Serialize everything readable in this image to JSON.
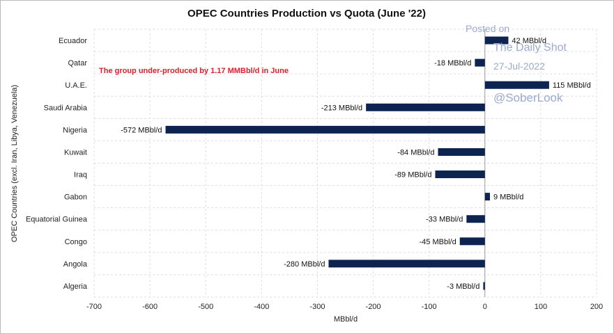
{
  "chart_data": {
    "type": "bar",
    "orientation": "horizontal",
    "title": "OPEC Countries Production vs Quota (June '22)",
    "xlabel": "MBbl/d",
    "ylabel": "OPEC Countries (excl. Iran, Libya, Venezuela)",
    "xlim": [
      -700,
      200
    ],
    "xticks": [
      -700,
      -600,
      -500,
      -400,
      -300,
      -200,
      -100,
      0,
      100,
      200
    ],
    "grid": true,
    "bar_color": "#0d2451",
    "annotation_color": "#e01e2a",
    "categories": [
      "Ecuador",
      "Qatar",
      "U.A.E.",
      "Saudi Arabia",
      "Nigeria",
      "Kuwait",
      "Iraq",
      "Gabon",
      "Equatorial Guinea",
      "Congo",
      "Angola",
      "Algeria"
    ],
    "values": [
      42,
      -18,
      115,
      -213,
      -572,
      -84,
      -89,
      9,
      -33,
      -45,
      -280,
      -3
    ],
    "data_labels": [
      "42 MBbl/d",
      "-18 MBbl/d",
      "115 MBbl/d",
      "-213 MBbl/d",
      "-572 MBbl/d",
      "-84 MBbl/d",
      "-89 MBbl/d",
      "9 MBbl/d",
      "-33 MBbl/d",
      "-45 MBbl/d",
      "-280 MBbl/d",
      "-3 MBbl/d"
    ],
    "annotation": "The group under-produced by 1.17 MMBbl/d in June"
  },
  "watermark": {
    "line1": "Posted on",
    "line2": "The Daily Shot",
    "line3": "27-Jul-2022",
    "line4": "@SoberLook"
  }
}
